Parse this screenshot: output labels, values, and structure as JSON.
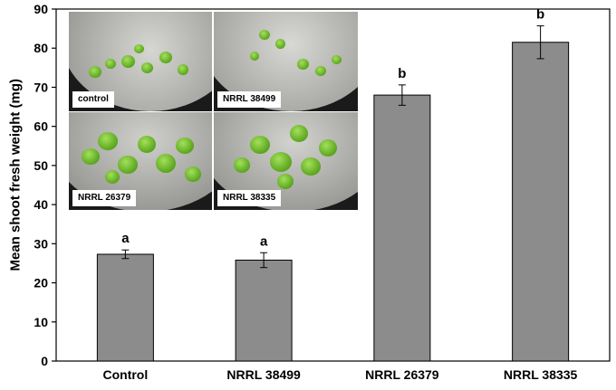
{
  "chart_data": {
    "type": "bar",
    "categories": [
      "Control",
      "NRRL 38499",
      "NRRL 26379",
      "NRRL 38335"
    ],
    "values": [
      27.3,
      25.8,
      68.0,
      81.5
    ],
    "errors": [
      1.1,
      1.9,
      2.6,
      4.2
    ],
    "significance_letters": [
      "a",
      "a",
      "b",
      "b"
    ],
    "ylabel": "Mean shoot fresh weight (mg)",
    "xlabel": "",
    "ylim": [
      0,
      90
    ],
    "yticks": [
      0,
      10,
      20,
      30,
      40,
      50,
      60,
      70,
      80,
      90
    ],
    "bar_color": "#8c8c8c",
    "grid": false,
    "inset_photos": [
      {
        "label": "control",
        "plant_size": "small"
      },
      {
        "label": "NRRL 38499",
        "plant_size": "small"
      },
      {
        "label": "NRRL 26379",
        "plant_size": "large"
      },
      {
        "label": "NRRL 38335",
        "plant_size": "large"
      }
    ]
  }
}
